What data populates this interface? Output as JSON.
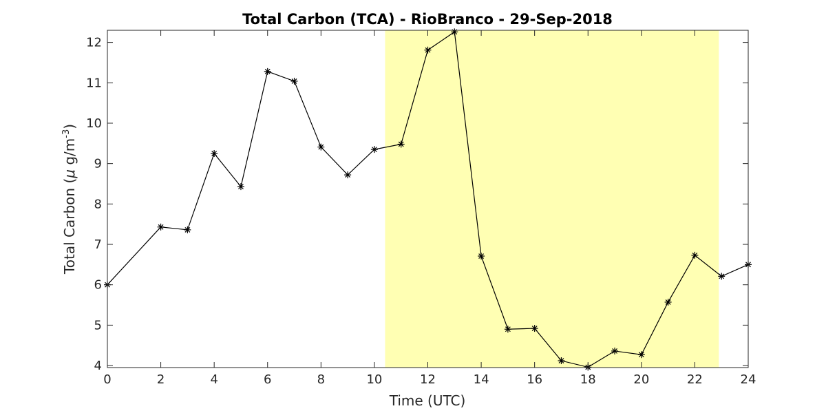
{
  "chart_data": {
    "type": "line",
    "title": "Total Carbon (TCA) - RioBranco - 29-Sep-2018",
    "xlabel": "Time (UTC)",
    "ylabel_prefix": "Total Carbon (",
    "ylabel_mu": "μ",
    "ylabel_unit": " g/m",
    "ylabel_exp": "-3",
    "ylabel_suffix": ")",
    "xlim": [
      0,
      24
    ],
    "ylim": [
      3.95,
      12.3
    ],
    "xticks": [
      0,
      2,
      4,
      6,
      8,
      10,
      12,
      14,
      16,
      18,
      20,
      22,
      24
    ],
    "yticks": [
      4,
      5,
      6,
      7,
      8,
      9,
      10,
      11,
      12
    ],
    "grid": false,
    "highlight_span": {
      "x0": 10.4,
      "x1": 22.9,
      "color": "#ffffb3"
    },
    "series": [
      {
        "color": "#000000",
        "marker": "asterisk",
        "x": [
          0,
          2,
          3,
          4,
          5,
          6,
          7,
          8,
          9,
          10,
          11,
          12,
          13,
          14,
          15,
          16,
          17,
          18,
          19,
          20,
          21,
          22,
          23,
          24
        ],
        "y": [
          6.0,
          7.43,
          7.36,
          9.25,
          8.43,
          11.28,
          11.04,
          9.41,
          8.72,
          9.35,
          9.48,
          11.81,
          12.26,
          6.71,
          4.9,
          4.92,
          4.12,
          3.96,
          4.36,
          4.27,
          5.57,
          6.73,
          6.21,
          6.5
        ]
      }
    ]
  }
}
